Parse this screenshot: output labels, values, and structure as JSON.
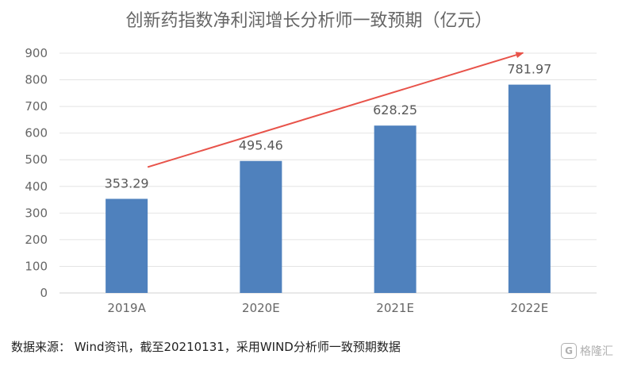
{
  "chart_data": {
    "type": "bar",
    "title": "创新药指数净利润增长分析师一致预期（亿元）",
    "categories": [
      "2019A",
      "2020E",
      "2021E",
      "2022E"
    ],
    "values": [
      353.29,
      495.46,
      628.25,
      781.97
    ],
    "value_labels": [
      "353.29",
      "495.46",
      "628.25",
      "781.97"
    ],
    "ylim": [
      0,
      900
    ],
    "yticks": [
      "0",
      "100",
      "200",
      "300",
      "400",
      "500",
      "600",
      "700",
      "800",
      "900"
    ],
    "xlabel": "",
    "ylabel": "",
    "grid": true,
    "legend": "none",
    "bar_color": "#4f81bd",
    "trend_arrow_color": "#e8534a"
  },
  "source_text": "数据来源： Wind资讯，截至20210131，采用WIND分析师一致预期数据",
  "watermark": {
    "icon_name": "gelonghui-logo-icon",
    "text": "格隆汇"
  }
}
